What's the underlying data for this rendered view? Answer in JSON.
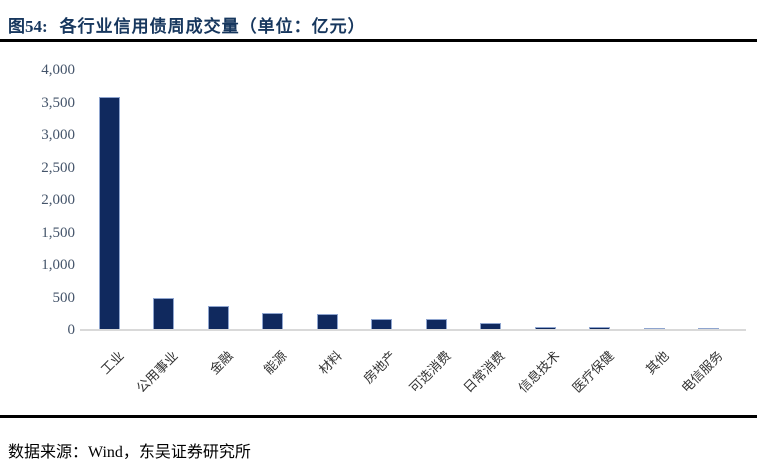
{
  "figure": {
    "label": "图54:",
    "title": "各行业信用债周成交量（单位：亿元）"
  },
  "source_note": "数据来源：Wind，东吴证券研究所",
  "colors": {
    "title": "#17375e",
    "bar_fill": "#10295e",
    "bar_border": "#8fa5cf",
    "axis_line": "#d9d9d9",
    "tick_label": "#44546a",
    "x_label": "#333333",
    "divider": "#000000",
    "background": "#ffffff"
  },
  "chart_data": {
    "type": "bar",
    "title": "各行业信用债周成交量",
    "unit": "亿元",
    "categories": [
      "工业",
      "公用事业",
      "金融",
      "能源",
      "材料",
      "房地产",
      "可选消费",
      "日常消费",
      "信息技术",
      "医疗保健",
      "其他",
      "电信服务"
    ],
    "values": [
      3580,
      495,
      370,
      265,
      250,
      175,
      170,
      110,
      52,
      48,
      30,
      25
    ],
    "xlabel": "",
    "ylabel": "",
    "ylim": [
      0,
      4000
    ],
    "ytick_step": 500,
    "ytick_labels": [
      "0",
      "500",
      "1,000",
      "1,500",
      "2,000",
      "2,500",
      "3,000",
      "3,500",
      "4,000"
    ],
    "grid": false,
    "legend": "none",
    "x_label_rotation": -45
  }
}
